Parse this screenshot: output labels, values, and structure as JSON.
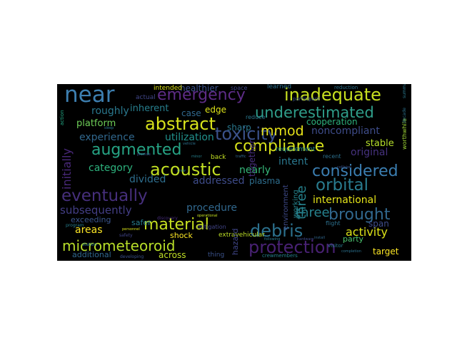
{
  "wordcloud": {
    "background": "#000000",
    "words": [
      {
        "text": "near",
        "color": "#3d7fb0"
      },
      {
        "text": "emergency",
        "color": "#5e2c87"
      },
      {
        "text": "inadequate",
        "color": "#c8e020"
      },
      {
        "text": "abstract",
        "color": "#d7e21b"
      },
      {
        "text": "underestimated",
        "color": "#2f9e8a"
      },
      {
        "text": "toxicity",
        "color": "#3b528b"
      },
      {
        "text": "mmod",
        "color": "#e8e419"
      },
      {
        "text": "augmented",
        "color": "#26a384"
      },
      {
        "text": "compliance",
        "color": "#d9e31b"
      },
      {
        "text": "acoustic",
        "color": "#c2df23"
      },
      {
        "text": "considered",
        "color": "#3b7eb1"
      },
      {
        "text": "eventually",
        "color": "#462f7c"
      },
      {
        "text": "orbital",
        "color": "#297b8e"
      },
      {
        "text": "material",
        "color": "#c6e021"
      },
      {
        "text": "debris",
        "color": "#2c718e"
      },
      {
        "text": "brought",
        "color": "#31688e"
      },
      {
        "text": "micrometeoroid",
        "color": "#b8de29"
      },
      {
        "text": "protection",
        "color": "#482173"
      },
      {
        "text": "roughly",
        "color": "#2a788e"
      },
      {
        "text": "experience",
        "color": "#31688e"
      },
      {
        "text": "utilization",
        "color": "#21918c"
      },
      {
        "text": "platform",
        "color": "#6ece58"
      },
      {
        "text": "category",
        "color": "#2db27d"
      },
      {
        "text": "divided",
        "color": "#2e6e8e"
      },
      {
        "text": "addressed",
        "color": "#3e4c8a"
      },
      {
        "text": "nearly",
        "color": "#35b779"
      },
      {
        "text": "intent",
        "color": "#2a788e"
      },
      {
        "text": "international",
        "color": "#e5e419"
      },
      {
        "text": "subsequently",
        "color": "#433e85"
      },
      {
        "text": "procedure",
        "color": "#31688e"
      },
      {
        "text": "areas",
        "color": "#fde725"
      },
      {
        "text": "activity",
        "color": "#dde318"
      },
      {
        "text": "noncompliant",
        "color": "#3e4c8a"
      },
      {
        "text": "cooperation",
        "color": "#2db27d"
      },
      {
        "text": "original",
        "color": "#46327e"
      },
      {
        "text": "stable",
        "color": "#b5de2b"
      },
      {
        "text": "inherent",
        "color": "#277f8e"
      },
      {
        "text": "healthier",
        "color": "#3b528b"
      },
      {
        "text": "case",
        "color": "#31688e"
      },
      {
        "text": "edge",
        "color": "#dde318"
      },
      {
        "text": "sharp",
        "color": "#2a788e"
      },
      {
        "text": "plasma",
        "color": "#2e6e8e"
      },
      {
        "text": "three",
        "color": "#26828e"
      },
      {
        "text": "initially",
        "color": "#482878"
      },
      {
        "text": "span",
        "color": "#3e4c8a"
      },
      {
        "text": "target",
        "color": "#fde725"
      },
      {
        "text": "party",
        "color": "#4ac16d"
      },
      {
        "text": "exceeding",
        "color": "#3a548c"
      },
      {
        "text": "safer",
        "color": "#287d8e"
      },
      {
        "text": "additional",
        "color": "#31688e"
      },
      {
        "text": "across",
        "color": "#c0df25"
      },
      {
        "text": "shock",
        "color": "#fde725"
      },
      {
        "text": "hazard",
        "color": "#404688"
      },
      {
        "text": "extravehicular",
        "color": "#bddf26"
      },
      {
        "text": "together",
        "color": "#472f7d"
      },
      {
        "text": "environment",
        "color": "#3e4a89"
      },
      {
        "text": "working",
        "color": "#25858e"
      },
      {
        "text": "intended",
        "color": "#dde318"
      },
      {
        "text": "space",
        "color": "#404688"
      },
      {
        "text": "learned",
        "color": "#2d708e"
      },
      {
        "text": "reduction",
        "color": "#2c728e"
      },
      {
        "text": "actual",
        "color": "#404688"
      },
      {
        "text": "participant",
        "color": "#3b528b"
      },
      {
        "text": "reduce",
        "color": "#2a788e"
      },
      {
        "text": "requirement",
        "color": "#238a8d"
      },
      {
        "text": "mitigation",
        "color": "#414487"
      },
      {
        "text": "thing",
        "color": "#3b528b"
      },
      {
        "text": "flight",
        "color": "#2d708e"
      },
      {
        "text": "visitor",
        "color": "#2a788e"
      },
      {
        "text": "crewmembers",
        "color": "#26828e"
      },
      {
        "text": "back",
        "color": "#c2df23"
      },
      {
        "text": "recent",
        "color": "#2d708e"
      },
      {
        "text": "discovery",
        "color": "#472d7b"
      },
      {
        "text": "station",
        "color": "#2a788e"
      },
      {
        "text": "developing",
        "color": "#3b528b"
      },
      {
        "text": "worthwhile",
        "color": "#a2da37"
      },
      {
        "text": "program",
        "color": "#277f8e"
      },
      {
        "text": "action",
        "color": "#22a884"
      },
      {
        "text": "decade",
        "color": "#2c728e"
      },
      {
        "text": "following",
        "color": "#2a788e"
      },
      {
        "text": "hardware",
        "color": "#3e4a89"
      },
      {
        "text": "completion",
        "color": "#2c728e"
      },
      {
        "text": "collision",
        "color": "#3b528b"
      },
      {
        "text": "summary",
        "color": "#2a788e"
      },
      {
        "text": "personnel",
        "color": "#d8e219"
      },
      {
        "text": "operational",
        "color": "#c5e021"
      },
      {
        "text": "install",
        "color": "#31688e"
      },
      {
        "text": "safety",
        "color": "#414487"
      },
      {
        "text": "sleep",
        "color": "#2a788e"
      },
      {
        "text": "provide",
        "color": "#3b528b"
      },
      {
        "text": "vehicle",
        "color": "#2c728e"
      },
      {
        "text": "traffic",
        "color": "#31688e"
      },
      {
        "text": "minor",
        "color": "#26828e"
      },
      {
        "text": "crew",
        "color": "#2a788e"
      }
    ]
  }
}
